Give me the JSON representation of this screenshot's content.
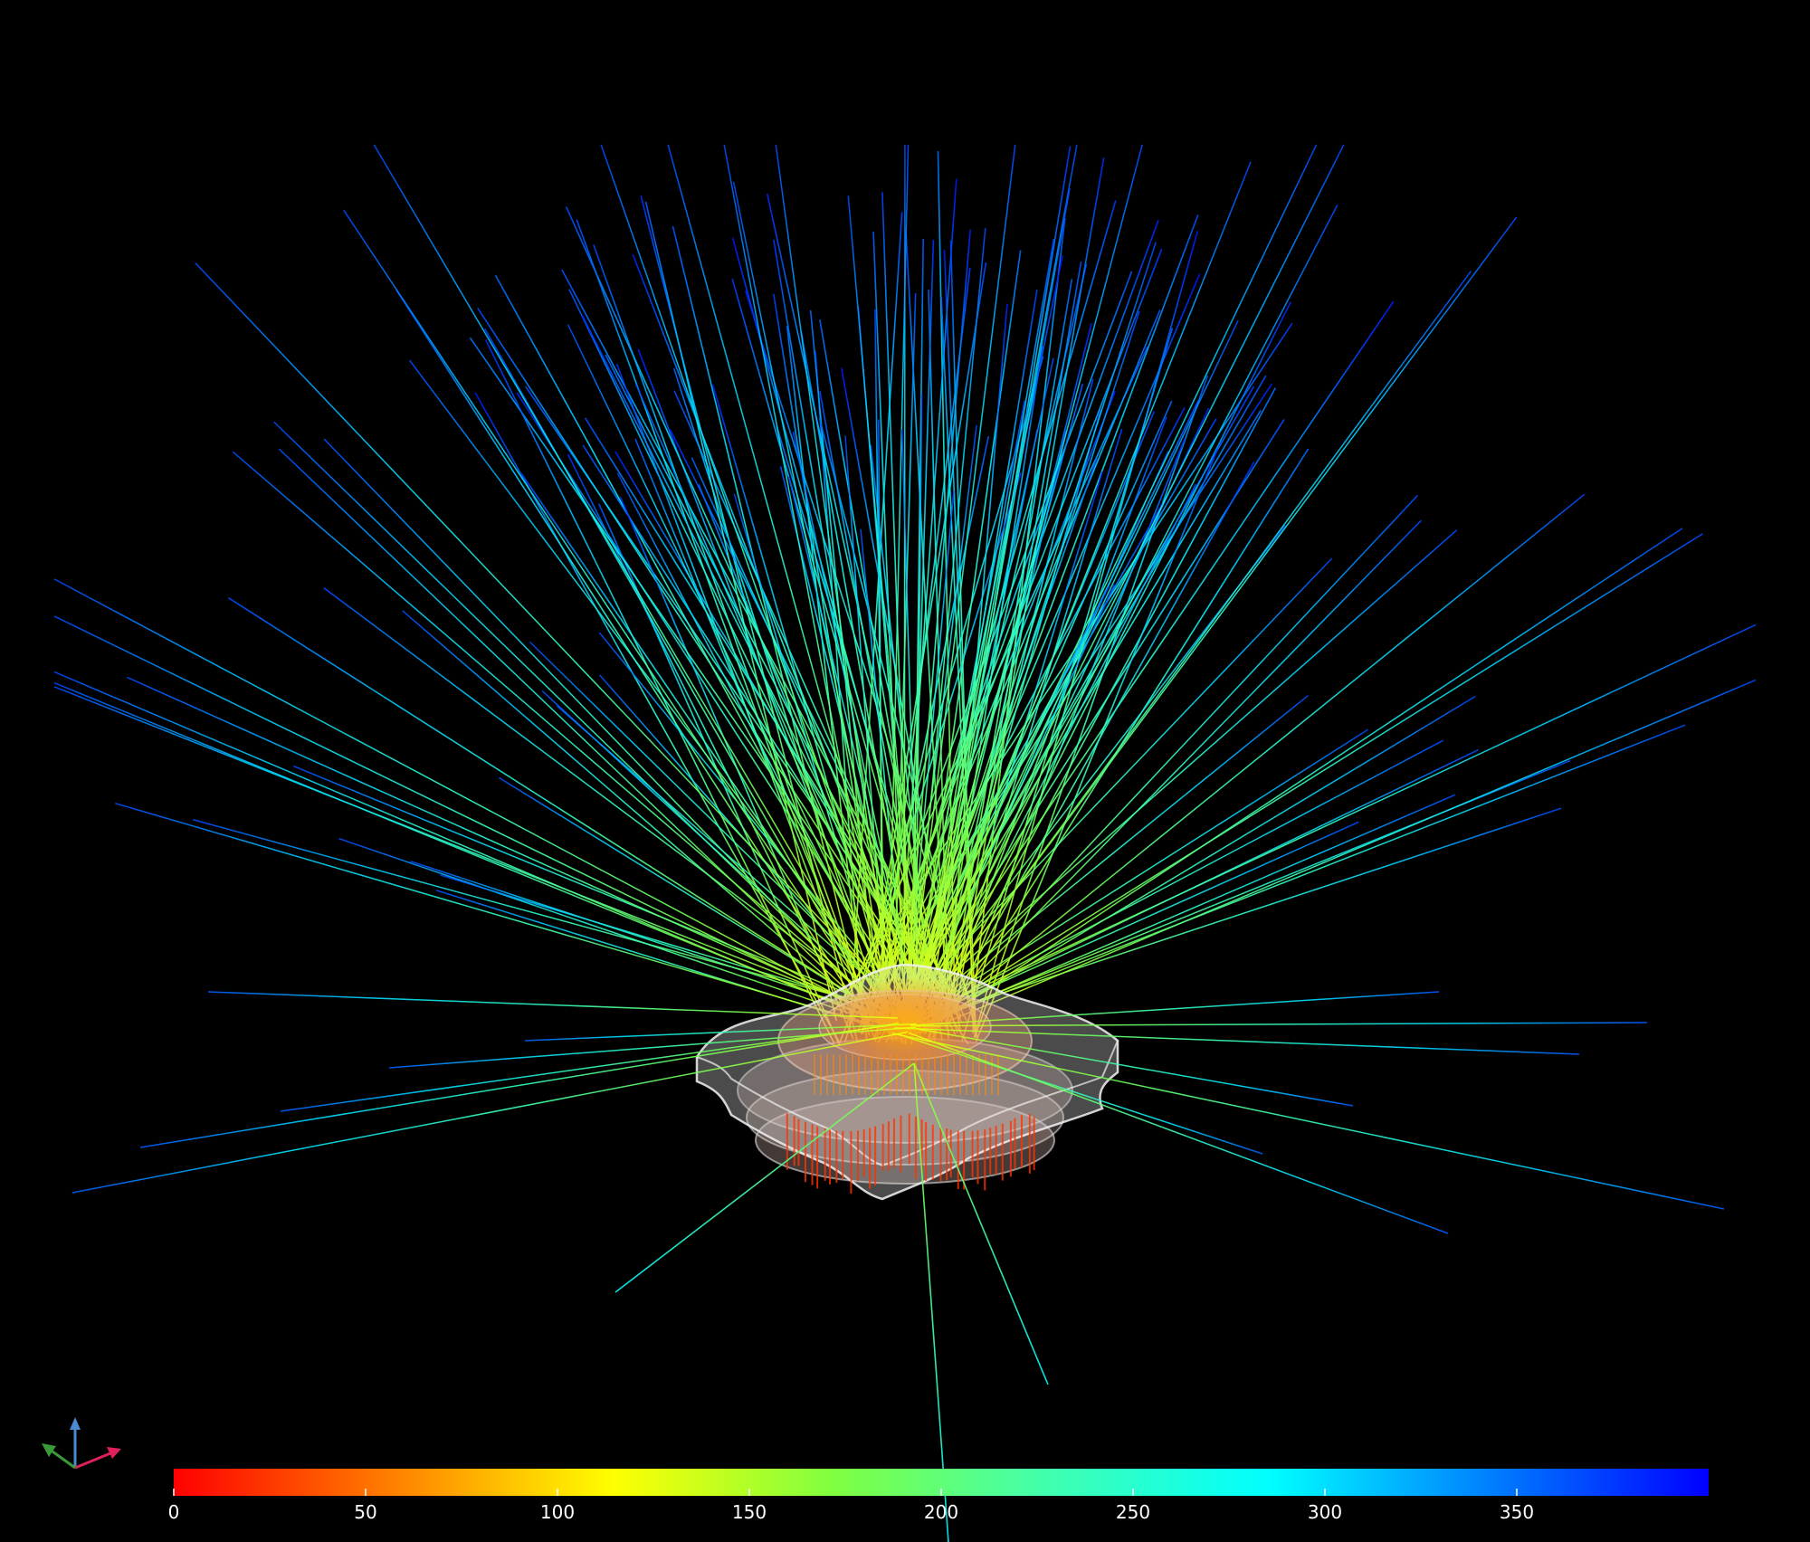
{
  "colorbar": {
    "min": 0,
    "max": 400,
    "ticks": [
      {
        "value": 0,
        "label": "0"
      },
      {
        "value": 50,
        "label": "50"
      },
      {
        "value": 100,
        "label": "100"
      },
      {
        "value": 150,
        "label": "150"
      },
      {
        "value": 200,
        "label": "200"
      },
      {
        "value": 250,
        "label": "250"
      },
      {
        "value": 300,
        "label": "300"
      },
      {
        "value": 350,
        "label": "350"
      }
    ],
    "colormap": [
      "#ff0000",
      "#ff8000",
      "#ffff00",
      "#80ff40",
      "#40ffb0",
      "#00ffff",
      "#0080ff",
      "#0000ff"
    ]
  },
  "scene": {
    "background": "#000000",
    "geometry_color": "#dcdcdc",
    "arrow_color": "#ff3300",
    "emitter_color": "#ff8c00"
  },
  "axis_triad": {
    "x_color": "#e0205a",
    "y_color": "#3a9a3a",
    "z_color": "#4a8ad0"
  }
}
